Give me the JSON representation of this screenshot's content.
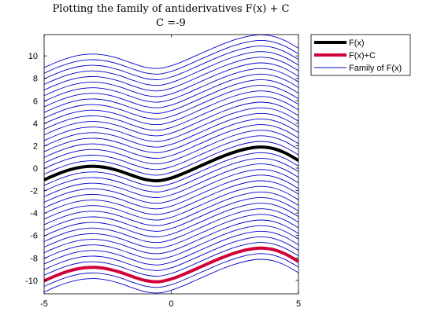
{
  "chart_data": {
    "type": "line",
    "title": "Plotting the family of antiderivatives F(x) + C",
    "subtitle": "C =-9",
    "xlabel": "",
    "ylabel": "",
    "xlim": [
      -5,
      5
    ],
    "ylim": [
      -11.2,
      11.9
    ],
    "x_ticks": [
      "-5",
      "0",
      "5"
    ],
    "y_ticks": [
      "-10",
      "-8",
      "-6",
      "-4",
      "-2",
      "0",
      "2",
      "4",
      "6",
      "8",
      "10"
    ],
    "x_tick_values": [
      -5,
      0,
      5
    ],
    "y_tick_values": [
      -10,
      -8,
      -6,
      -4,
      -2,
      0,
      2,
      4,
      6,
      8,
      10
    ],
    "grid": false,
    "legend_position": "outside-right",
    "x": [
      -5,
      -4.5,
      -4,
      -3.5,
      -3,
      -2.5,
      -2,
      -1.5,
      -1,
      -0.5,
      0,
      0.5,
      1,
      1.5,
      2,
      2.5,
      3,
      3.5,
      4,
      4.5,
      5
    ],
    "series": [
      {
        "name": "F(x)",
        "color": "#000000",
        "values": [
          -1.04,
          -0.55,
          -0.15,
          0.1,
          0.16,
          0.02,
          -0.28,
          -0.68,
          -1.02,
          -1.12,
          -0.88,
          -0.45,
          0.05,
          0.55,
          1.03,
          1.44,
          1.74,
          1.88,
          1.75,
          1.33,
          0.68
        ]
      },
      {
        "name": "F(x)+C",
        "color": "#d1003a",
        "values": [
          -10.04,
          -9.55,
          -9.15,
          -8.9,
          -8.84,
          -8.98,
          -9.28,
          -9.68,
          -10.02,
          -10.12,
          -9.88,
          -9.45,
          -8.95,
          -8.45,
          -7.97,
          -7.56,
          -7.26,
          -7.12,
          -7.25,
          -7.67,
          -8.32
        ]
      },
      {
        "name": "Family of F(x)",
        "color": "#0000cc",
        "offsets": [
          -10,
          -9.5,
          -9,
          -8.5,
          -8,
          -7.5,
          -7,
          -6.5,
          -6,
          -5.5,
          -5,
          -4.5,
          -4,
          -3.5,
          -3,
          -2.5,
          -2,
          -1.5,
          -1,
          -0.5,
          0,
          0.5,
          1,
          1.5,
          2,
          2.5,
          3,
          3.5,
          4,
          4.5,
          5,
          5.5,
          6,
          6.5,
          7,
          7.5,
          8,
          8.5,
          9,
          9.5,
          10
        ]
      }
    ]
  },
  "legend": {
    "items": [
      {
        "label": "F(x)",
        "color": "#000000"
      },
      {
        "label": "F(x)+C",
        "color": "#d1003a"
      },
      {
        "label": "Family of F(x)",
        "color": "#0000cc"
      }
    ]
  }
}
